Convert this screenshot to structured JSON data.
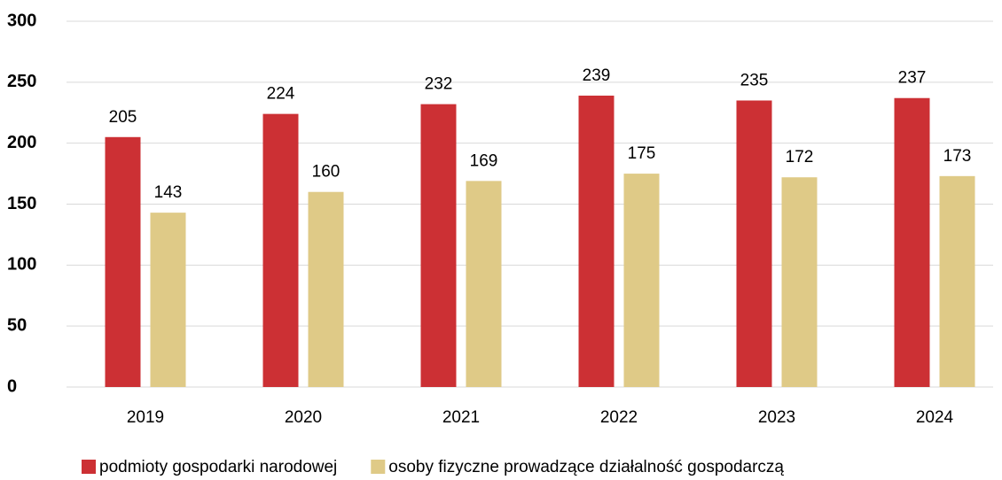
{
  "chart_data": {
    "type": "bar",
    "categories": [
      "2019",
      "2020",
      "2021",
      "2022",
      "2023",
      "2024"
    ],
    "series": [
      {
        "name": "podmioty gospodarki narodowej",
        "color": "#cc3034",
        "values": [
          205,
          224,
          232,
          239,
          235,
          237
        ]
      },
      {
        "name": "osoby fizyczne prowadzące działalność gospodarczą",
        "color": "#dfca87",
        "values": [
          143,
          160,
          169,
          175,
          172,
          173
        ]
      }
    ],
    "ylim": [
      0,
      300
    ],
    "yticks": [
      0,
      50,
      100,
      150,
      200,
      250,
      300
    ],
    "grid": true
  }
}
